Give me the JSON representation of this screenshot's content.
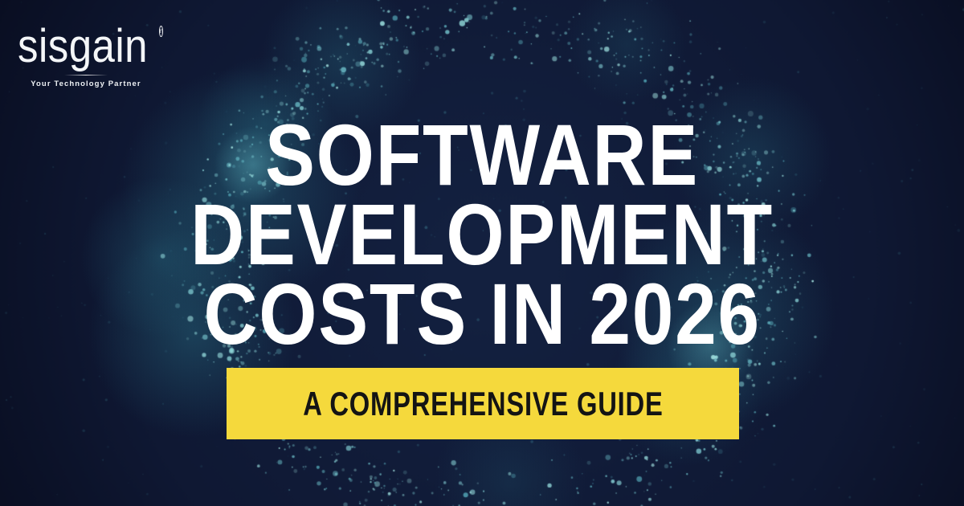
{
  "logo": {
    "brand": "sisgain",
    "registered_mark": "r",
    "tagline": "Your Technology Partner"
  },
  "title": {
    "lines": [
      "SOFTWARE",
      "DEVELOPMENT",
      "COSTS IN 2026"
    ]
  },
  "banner": {
    "label": "A COMPREHENSIVE GUIDE"
  },
  "colors": {
    "background_deep": "#070a1a",
    "background_mid": "#0f1833",
    "background_light": "#13203f",
    "particle_teal": "#4d9fb0",
    "particle_bright": "#aaeae6",
    "haze_teal": "#2d7a8e",
    "haze_bright": "#5fb3bf",
    "banner_yellow": "#f5d93c",
    "banner_text": "#141414",
    "title_text": "#ffffff",
    "logo_text": "#f4f6f8"
  }
}
